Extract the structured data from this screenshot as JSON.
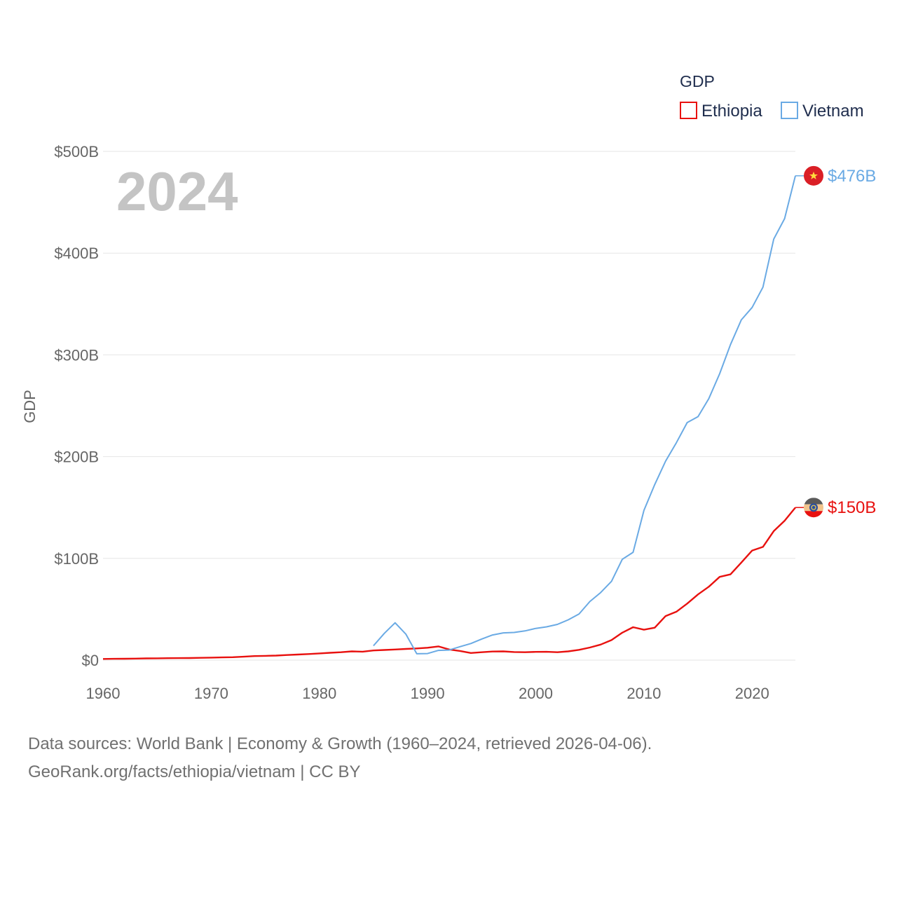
{
  "chart_data": {
    "type": "line",
    "legend_title": "GDP",
    "ylabel": "GDP",
    "year_label": "2024",
    "xlim": [
      1960,
      2024
    ],
    "ylim": [
      0,
      500
    ],
    "x_ticks": [
      1960,
      1970,
      1980,
      1990,
      2000,
      2010,
      2020
    ],
    "y_ticks": [
      {
        "value": 0,
        "label": "$0"
      },
      {
        "value": 100,
        "label": "$100B"
      },
      {
        "value": 200,
        "label": "$200B"
      },
      {
        "value": 300,
        "label": "$300B"
      },
      {
        "value": 400,
        "label": "$400B"
      },
      {
        "value": 500,
        "label": "$500B"
      }
    ],
    "units": "billions of US dollars",
    "legend_placement": "top-right",
    "series": [
      {
        "name": "Ethiopia",
        "color": "#e8110f",
        "end_label": "$150B",
        "x": [
          1960,
          1961,
          1962,
          1963,
          1964,
          1965,
          1966,
          1967,
          1968,
          1969,
          1970,
          1971,
          1972,
          1973,
          1974,
          1975,
          1976,
          1977,
          1978,
          1979,
          1980,
          1981,
          1982,
          1983,
          1984,
          1985,
          1986,
          1987,
          1988,
          1989,
          1990,
          1991,
          1992,
          1993,
          1994,
          1995,
          1996,
          1997,
          1998,
          1999,
          2000,
          2001,
          2002,
          2003,
          2004,
          2005,
          2006,
          2007,
          2008,
          2009,
          2010,
          2011,
          2012,
          2013,
          2014,
          2015,
          2016,
          2017,
          2018,
          2019,
          2020,
          2021,
          2022,
          2023,
          2024
        ],
        "values": [
          1.2,
          1.3,
          1.4,
          1.5,
          1.7,
          1.8,
          1.9,
          2.0,
          2.1,
          2.3,
          2.5,
          2.7,
          2.9,
          3.4,
          4.0,
          4.2,
          4.5,
          5.0,
          5.5,
          6.0,
          6.6,
          7.2,
          7.8,
          8.6,
          8.3,
          9.5,
          10.0,
          10.5,
          11.0,
          11.5,
          12.2,
          13.5,
          10.5,
          9.0,
          7.0,
          7.8,
          8.5,
          8.6,
          8.0,
          7.8,
          8.1,
          8.2,
          7.8,
          8.6,
          10.1,
          12.4,
          15.3,
          19.7,
          27.0,
          32.4,
          29.9,
          31.9,
          43.3,
          47.6,
          55.6,
          64.6,
          72.2,
          81.8,
          84.3,
          95.9,
          107.7,
          111.3,
          126.8,
          137.0,
          150.0
        ]
      },
      {
        "name": "Vietnam",
        "color": "#6aaae4",
        "end_label": "$476B",
        "x": [
          1985,
          1986,
          1987,
          1988,
          1989,
          1990,
          1991,
          1992,
          1993,
          1994,
          1995,
          1996,
          1997,
          1998,
          1999,
          2000,
          2001,
          2002,
          2003,
          2004,
          2005,
          2006,
          2007,
          2008,
          2009,
          2010,
          2011,
          2012,
          2013,
          2014,
          2015,
          2016,
          2017,
          2018,
          2019,
          2020,
          2021,
          2022,
          2023,
          2024
        ],
        "values": [
          14.1,
          26.3,
          36.7,
          25.4,
          6.3,
          6.5,
          9.6,
          9.9,
          13.2,
          16.3,
          20.7,
          24.7,
          26.8,
          27.2,
          28.7,
          31.2,
          32.7,
          35.1,
          39.6,
          45.4,
          57.6,
          66.4,
          77.4,
          99.1,
          106.0,
          147.2,
          172.6,
          195.6,
          213.7,
          233.5,
          239.3,
          257.1,
          281.4,
          310.1,
          334.4,
          346.6,
          366.5,
          413.8,
          433.9,
          476.0
        ]
      }
    ]
  },
  "footer": {
    "line1": "Data sources: World Bank | Economy & Growth (1960–2024, retrieved 2026-04-06).",
    "line2": "GeoRank.org/facts/ethiopia/vietnam | CC BY"
  },
  "icons": {
    "ethiopia_marker": "ethiopia-flag-icon",
    "vietnam_marker": "vietnam-flag-icon"
  }
}
